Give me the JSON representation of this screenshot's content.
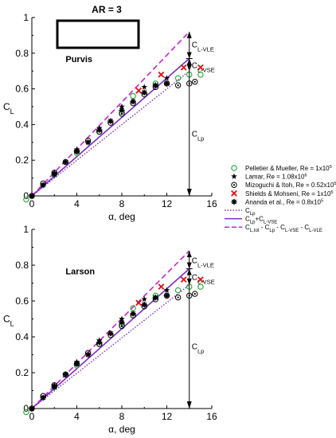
{
  "figure": {
    "title": "AR = 3"
  },
  "chart_data": [
    {
      "type": "scatter",
      "label": "Purvis",
      "xlabel": "α, deg",
      "ylabel": "C_L",
      "xlim": [
        0,
        16
      ],
      "ylim": [
        0,
        1
      ],
      "xticks": [
        0,
        4,
        8,
        12,
        16
      ],
      "yticks": [
        0,
        0.2,
        0.4,
        0.6,
        0.8,
        1
      ],
      "series": [
        {
          "name": "Pelletier & Mueller, Re = 1x10^5",
          "marker": "open-circle",
          "color": "#22aa33",
          "x": [
            -0.5,
            2,
            4,
            6,
            8,
            9,
            11,
            13,
            14,
            15
          ],
          "y": [
            -0.02,
            0.12,
            0.24,
            0.36,
            0.47,
            0.56,
            0.63,
            0.66,
            0.68,
            0.68
          ]
        },
        {
          "name": "Lamar, Re = 1.08x10^6",
          "marker": "star",
          "color": "#000000",
          "x": [
            0,
            2,
            4,
            6,
            8,
            10,
            12
          ],
          "y": [
            0,
            0.13,
            0.26,
            0.38,
            0.5,
            0.61,
            0.66
          ]
        },
        {
          "name": "Mizoguchi & Itoh, Re = 0.52x10^5",
          "marker": "circle-dot",
          "color": "#000000",
          "x": [
            0,
            1,
            2,
            3,
            4,
            5,
            6,
            7,
            8,
            9,
            10,
            11,
            12,
            13,
            14,
            14.5
          ],
          "y": [
            0,
            0.07,
            0.13,
            0.19,
            0.25,
            0.31,
            0.36,
            0.41,
            0.46,
            0.52,
            0.57,
            0.61,
            0.63,
            0.62,
            0.63,
            0.64
          ]
        },
        {
          "name": "Shields & Mohseni, Re = 1x10^5",
          "marker": "x",
          "color": "#dd1111",
          "x": [
            9.5,
            11.5,
            13.5,
            15
          ],
          "y": [
            0.59,
            0.68,
            0.72,
            0.72
          ]
        },
        {
          "name": "Ananda et al., Re = 0.8x10^5",
          "marker": "asterisk",
          "color": "#000000",
          "x": [
            0,
            1,
            2,
            3,
            4,
            5,
            6,
            7,
            8,
            9,
            10,
            11,
            12
          ],
          "y": [
            0,
            0.06,
            0.12,
            0.19,
            0.25,
            0.3,
            0.37,
            0.42,
            0.48,
            0.53,
            0.58,
            0.62,
            0.63
          ]
        }
      ],
      "lines": [
        {
          "name": "C_Lp",
          "style": "dotted",
          "color": "#7a2cc4",
          "x": [
            0,
            14
          ],
          "y": [
            0,
            0.7
          ]
        },
        {
          "name": "C_Lp+C_L-VSE",
          "style": "solid",
          "color": "#7a2cc4",
          "x": [
            0,
            14
          ],
          "y": [
            0,
            0.77
          ]
        },
        {
          "name": "C_L,tot - C_Lp - C_L-VSE - C_L-VLE",
          "style": "dashed",
          "color": "#cc22cc",
          "x": [
            0,
            14
          ],
          "y": [
            0,
            0.92
          ]
        }
      ],
      "annotations": [
        {
          "text": "C_L-VLE",
          "x": 14,
          "y": 0.85
        },
        {
          "text": "C_L-VSE",
          "x": 14,
          "y": 0.735
        },
        {
          "text": "C_Lp",
          "x": 14,
          "y": 0.35
        }
      ]
    },
    {
      "type": "scatter",
      "label": "Larson",
      "xlabel": "α, deg",
      "ylabel": "C_L",
      "xlim": [
        0,
        16
      ],
      "ylim": [
        0,
        1
      ],
      "xticks": [
        0,
        4,
        8,
        12,
        16
      ],
      "yticks": [
        0,
        0.2,
        0.4,
        0.6,
        0.8,
        1
      ],
      "series": [
        {
          "name": "Pelletier & Mueller, Re = 1x10^5",
          "marker": "open-circle",
          "color": "#22aa33",
          "x": [
            -0.5,
            2,
            4,
            6,
            8,
            9,
            11,
            13,
            14,
            15
          ],
          "y": [
            -0.02,
            0.12,
            0.24,
            0.36,
            0.47,
            0.56,
            0.63,
            0.66,
            0.68,
            0.68
          ]
        },
        {
          "name": "Lamar, Re = 1.08x10^6",
          "marker": "star",
          "color": "#000000",
          "x": [
            0,
            2,
            4,
            6,
            8,
            10,
            12
          ],
          "y": [
            0,
            0.13,
            0.26,
            0.38,
            0.5,
            0.61,
            0.66
          ]
        },
        {
          "name": "Mizoguchi & Itoh, Re = 0.52x10^5",
          "marker": "circle-dot",
          "color": "#000000",
          "x": [
            0,
            1,
            2,
            3,
            4,
            5,
            6,
            7,
            8,
            9,
            10,
            11,
            12,
            13,
            14,
            14.5
          ],
          "y": [
            0,
            0.07,
            0.13,
            0.19,
            0.25,
            0.31,
            0.36,
            0.41,
            0.46,
            0.52,
            0.57,
            0.61,
            0.63,
            0.62,
            0.63,
            0.64
          ]
        },
        {
          "name": "Shields & Mohseni, Re = 1x10^5",
          "marker": "x",
          "color": "#dd1111",
          "x": [
            9.5,
            11.5,
            13.5,
            15
          ],
          "y": [
            0.59,
            0.68,
            0.72,
            0.72
          ]
        },
        {
          "name": "Ananda et al., Re = 0.8x10^5",
          "marker": "asterisk",
          "color": "#000000",
          "x": [
            0,
            1,
            2,
            3,
            4,
            5,
            6,
            7,
            8,
            9,
            10,
            11,
            12
          ],
          "y": [
            0,
            0.06,
            0.12,
            0.19,
            0.25,
            0.3,
            0.37,
            0.42,
            0.48,
            0.53,
            0.58,
            0.62,
            0.63
          ]
        }
      ],
      "lines": [
        {
          "name": "C_Lp",
          "style": "dotted",
          "color": "#7a2cc4",
          "x": [
            0,
            14
          ],
          "y": [
            0,
            0.69
          ]
        },
        {
          "name": "C_Lp+C_L-VSE",
          "style": "solid",
          "color": "#7a2cc4",
          "x": [
            0,
            14
          ],
          "y": [
            0,
            0.78
          ]
        },
        {
          "name": "C_L,tot - C_Lp - C_L-VSE - C_L-VLE",
          "style": "dashed",
          "color": "#cc22cc",
          "x": [
            0,
            14
          ],
          "y": [
            0,
            0.88
          ]
        }
      ],
      "annotations": [
        {
          "text": "C_L-VLE",
          "x": 14,
          "y": 0.83
        },
        {
          "text": "C_L-VSE",
          "x": 14,
          "y": 0.735
        },
        {
          "text": "C_Lp",
          "x": 14,
          "y": 0.35
        }
      ]
    }
  ],
  "legend": {
    "placement": "right",
    "entries": [
      {
        "name": "Pelletier & Mueller, Re = 1x10^5",
        "text": "Pelletier & Mueller, Re = 1x10",
        "sup": "5",
        "marker": "open-circle",
        "color": "#22aa33"
      },
      {
        "name": "Lamar, Re = 1.08x10^6",
        "text": "Lamar, Re = 1.08x10",
        "sup": "6",
        "marker": "star",
        "color": "#000000"
      },
      {
        "name": "Mizoguchi & Itoh, Re = 0.52x10^5",
        "text": "Mizoguchi & Itoh, Re = 0.52x10",
        "sup": "5",
        "marker": "circle-dot",
        "color": "#000000"
      },
      {
        "name": "Shields & Mohseni, Re = 1x10^5",
        "text": "Shields & Mohseni, Re = 1x10",
        "sup": "5",
        "marker": "x",
        "color": "#dd1111"
      },
      {
        "name": "Ananda et al., Re = 0.8x10^5",
        "text": "Ananda et al., Re = 0.8x10",
        "sup": "5",
        "marker": "asterisk",
        "color": "#000000"
      },
      {
        "name": "C_Lp",
        "main": "C",
        "sub": "Lp",
        "line": "dotted",
        "color": "#7a2cc4"
      },
      {
        "name": "C_Lp+C_L-VSE",
        "main": "C",
        "sub": "Lp",
        "mid": "+C",
        "sub2": "L-VSE",
        "line": "solid",
        "color": "#7a2cc4"
      },
      {
        "name": "C_L,tot - C_Lp - C_L-VSE - C_L-VLE",
        "main": "C",
        "sub": "L,tot",
        "mid": " - C",
        "sub2": "Lp",
        "mid2": " - C",
        "sub3": "L-VSE",
        "mid3": " - C",
        "sub4": "L-VLE",
        "line": "dashed",
        "color": "#cc22cc"
      }
    ]
  },
  "colors": {
    "axis": "#000000",
    "purple": "#7a2cc4",
    "magenta": "#cc22cc",
    "green": "#22aa33",
    "red": "#dd1111"
  }
}
